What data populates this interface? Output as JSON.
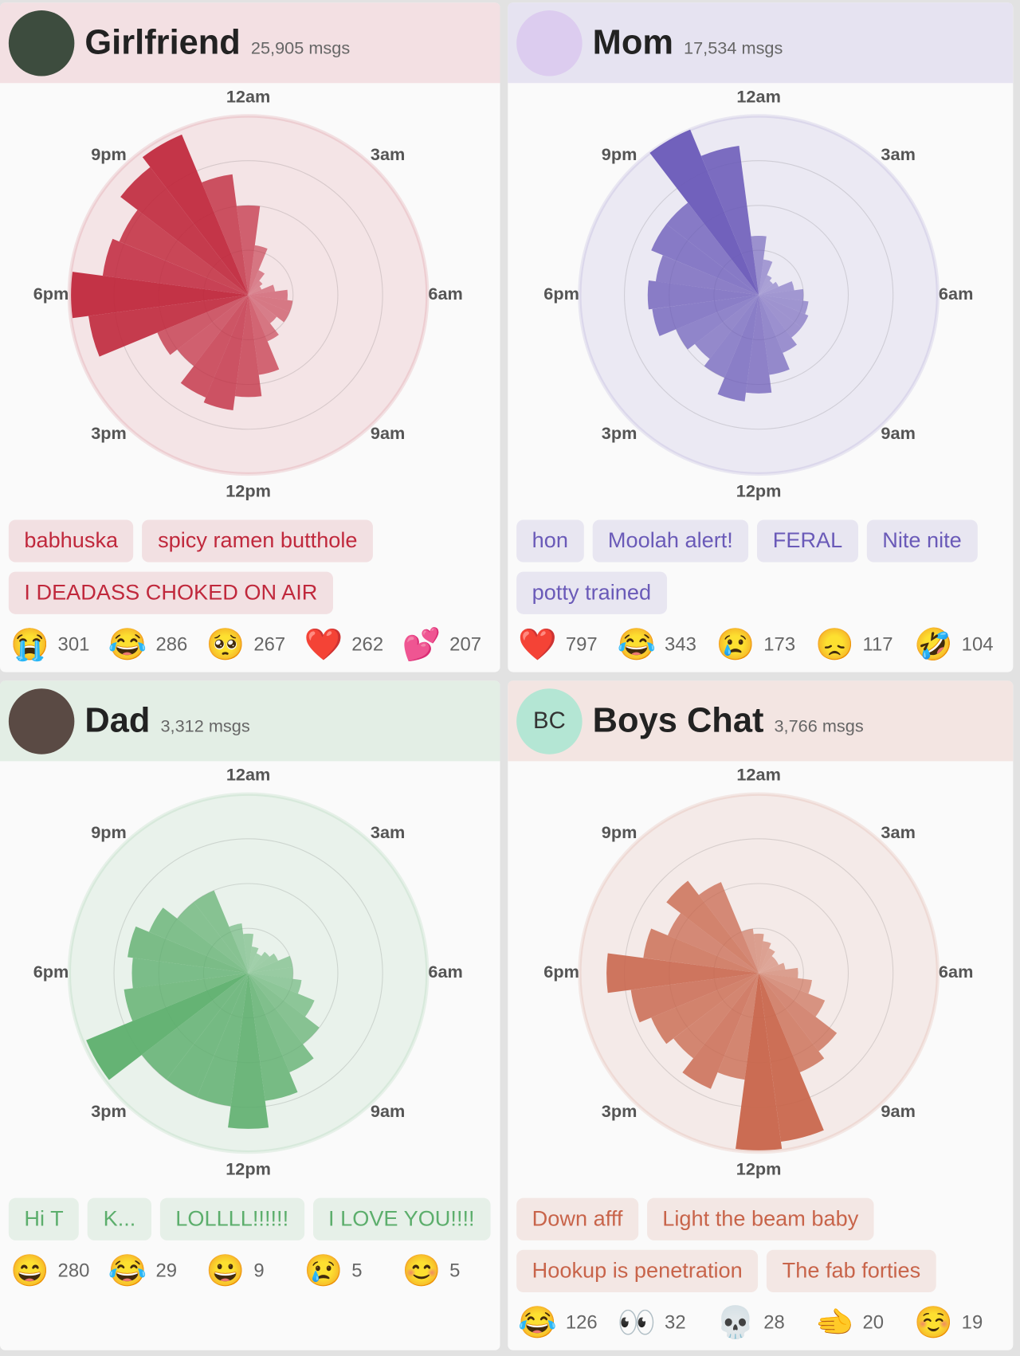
{
  "cards": [
    {
      "name": "Girlfriend",
      "msgs": "25,905 msgs",
      "phrases": [
        "babhuska",
        "spicy ramen butthole",
        "I DEADASS CHOKED ON AIR"
      ],
      "emojis": [
        {
          "emoji": "😭",
          "count": 301
        },
        {
          "emoji": "😂",
          "count": 286
        },
        {
          "emoji": "🥺",
          "count": 267
        },
        {
          "emoji": "❤️",
          "count": 262
        },
        {
          "emoji": "💕",
          "count": 207
        }
      ]
    },
    {
      "name": "Mom",
      "msgs": "17,534 msgs",
      "phrases": [
        "hon",
        "Moolah alert!",
        "FERAL",
        "Nite nite",
        "potty trained"
      ],
      "emojis": [
        {
          "emoji": "❤️",
          "count": 797
        },
        {
          "emoji": "😂",
          "count": 343
        },
        {
          "emoji": "😢",
          "count": 173
        },
        {
          "emoji": "😞",
          "count": 117
        },
        {
          "emoji": "🤣",
          "count": 104
        }
      ]
    },
    {
      "name": "Dad",
      "msgs": "3,312 msgs",
      "phrases": [
        "Hi T",
        "K...",
        "LOLLLL!!!!!!",
        "I LOVE YOU!!!!"
      ],
      "emojis": [
        {
          "emoji": "😄",
          "count": 280
        },
        {
          "emoji": "😂",
          "count": 29
        },
        {
          "emoji": "😀",
          "count": 9
        },
        {
          "emoji": "😢",
          "count": 5
        },
        {
          "emoji": "😊",
          "count": 5
        }
      ]
    },
    {
      "name": "Boys Chat",
      "msgs": "3,766 msgs",
      "avatar_initials": "BC",
      "phrases": [
        "Down afff",
        "Light the beam baby",
        "Hookup is penetration",
        "The fab forties"
      ],
      "emojis": [
        {
          "emoji": "😂",
          "count": 126
        },
        {
          "emoji": "👀",
          "count": 32
        },
        {
          "emoji": "💀",
          "count": 28
        },
        {
          "emoji": "🫲",
          "count": 20
        },
        {
          "emoji": "☺️",
          "count": 19
        }
      ]
    }
  ],
  "chart_data": [
    {
      "type": "polar-bar",
      "color": "#c0283c",
      "categories": [
        "12am",
        null,
        null,
        "3am",
        null,
        null,
        "6am",
        null,
        null,
        "9am",
        null,
        null,
        "12pm",
        null,
        null,
        "3pm",
        null,
        null,
        "6pm",
        null,
        null,
        "9pm",
        null,
        null
      ],
      "values": [
        50,
        28,
        15,
        10,
        8,
        15,
        22,
        25,
        25,
        20,
        28,
        45,
        57,
        65,
        62,
        50,
        55,
        90,
        99,
        82,
        78,
        90,
        97,
        68
      ],
      "rlim": [
        0,
        100
      ],
      "rticks": [
        25,
        50,
        75
      ]
    },
    {
      "type": "polar-bar",
      "color": "#6a5ab8",
      "categories": [
        "12am",
        null,
        null,
        "3am",
        null,
        null,
        "6am",
        null,
        null,
        "9am",
        null,
        null,
        "12pm",
        null,
        null,
        "3pm",
        null,
        null,
        "6pm",
        null,
        null,
        "9pm",
        null,
        null
      ],
      "values": [
        33,
        20,
        12,
        10,
        12,
        20,
        25,
        28,
        30,
        30,
        35,
        45,
        55,
        60,
        50,
        45,
        50,
        60,
        62,
        58,
        65,
        65,
        100,
        84
      ],
      "rlim": [
        0,
        100
      ],
      "rticks": [
        25,
        50,
        75
      ]
    },
    {
      "type": "polar-bar",
      "color": "#5cae6c",
      "categories": [
        "12am",
        null,
        null,
        "3am",
        null,
        null,
        "6am",
        null,
        null,
        "9am",
        null,
        null,
        "12pm",
        null,
        null,
        "3pm",
        null,
        null,
        "6pm",
        null,
        null,
        "9pm",
        null,
        null
      ],
      "values": [
        22,
        15,
        12,
        15,
        18,
        25,
        25,
        30,
        40,
        50,
        60,
        72,
        87,
        75,
        75,
        75,
        98,
        70,
        65,
        68,
        60,
        50,
        50,
        28
      ],
      "rlim": [
        0,
        100
      ],
      "rticks": [
        25,
        50,
        75
      ]
    },
    {
      "type": "polar-bar",
      "color": "#c8644a",
      "categories": [
        "12am",
        null,
        null,
        "3am",
        null,
        null,
        "6am",
        null,
        null,
        "9am",
        null,
        null,
        "12pm",
        null,
        null,
        "3pm",
        null,
        null,
        "6pm",
        null,
        null,
        "9pm",
        null,
        null
      ],
      "values": [
        22,
        18,
        15,
        12,
        12,
        15,
        22,
        30,
        40,
        55,
        60,
        95,
        99,
        60,
        70,
        60,
        65,
        72,
        85,
        65,
        55,
        65,
        55,
        25
      ],
      "rlim": [
        0,
        100
      ],
      "rticks": [
        25,
        50,
        75
      ]
    }
  ]
}
